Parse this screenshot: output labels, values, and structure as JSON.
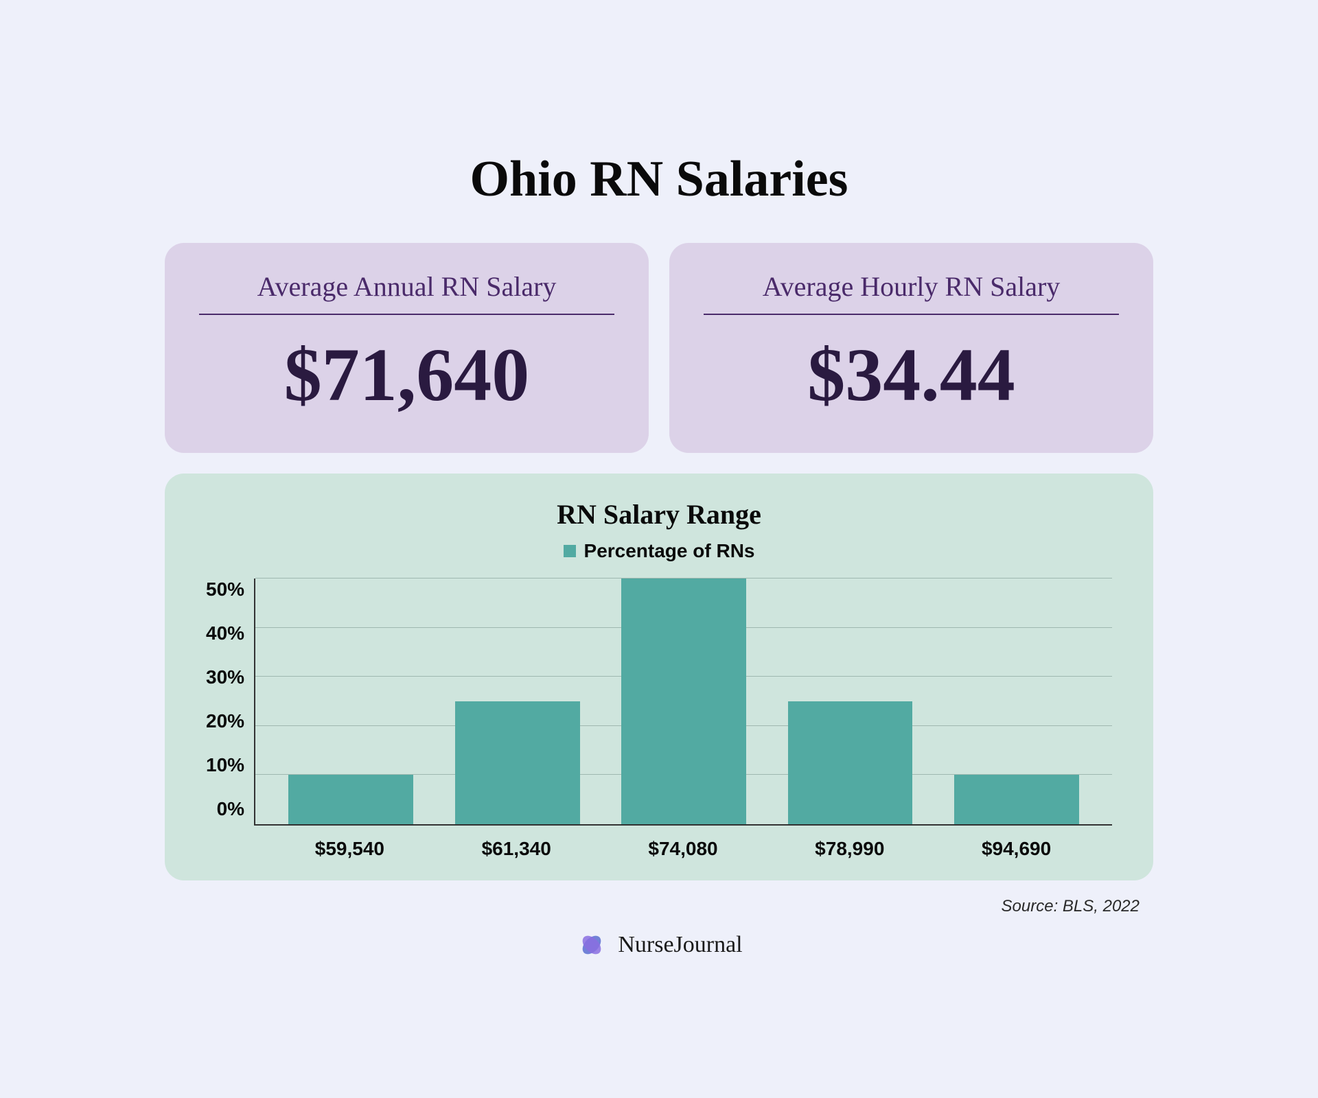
{
  "title": "Ohio RN Salaries",
  "title_fontsize": 74,
  "cards": {
    "annual": {
      "label": "Average Annual RN Salary",
      "value": "$71,640"
    },
    "hourly": {
      "label": "Average Hourly RN Salary",
      "value": "$34.44"
    },
    "card_bg": "#dcd2e8",
    "label_color": "#4a2a6a",
    "value_color": "#2a1a40",
    "label_fontsize": 40,
    "value_fontsize": 110
  },
  "chart": {
    "type": "bar",
    "title": "RN Salary Range",
    "title_fontsize": 40,
    "legend_label": "Percentage of RNs",
    "legend_fontsize": 28,
    "bar_color": "#52aaa2",
    "grid_color": "#9fb8b0",
    "axis_color": "#333333",
    "background": "#cfe5dd",
    "categories": [
      "$59,540",
      "$61,340",
      "$74,080",
      "$78,990",
      "$94,690"
    ],
    "values": [
      10,
      25,
      50,
      25,
      10
    ],
    "ylim": [
      0,
      50
    ],
    "yticks": [
      0,
      10,
      20,
      30,
      40,
      50
    ],
    "ytick_labels": [
      "0%",
      "10%",
      "20%",
      "30%",
      "40%",
      "50%"
    ],
    "tick_fontsize": 28,
    "xlabel_fontsize": 28,
    "bar_width_pct": 15
  },
  "source": "Source: BLS, 2022",
  "source_fontsize": 24,
  "brand": {
    "name": "NurseJournal",
    "fontsize": 34
  },
  "colors": {
    "page_bg": "#eef0fa",
    "text_dark": "#0a0a0a"
  }
}
